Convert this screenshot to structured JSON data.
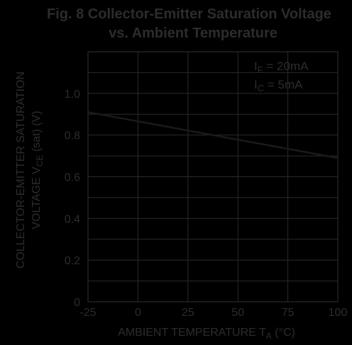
{
  "colors": {
    "background": "#000000",
    "grid": "#2a2a2a",
    "text": "#2c2c2c",
    "line": "#1a1a1a"
  },
  "chart_data": {
    "type": "line",
    "title_line1": "Fig. 8 Collector-Emitter Saturation Voltage",
    "title_line2": "vs. Ambient Temperature",
    "ylabel_line1": "COLLECTOR-EMITTER SATURATION",
    "ylabel_line2_prefix": "VOLTAGE V",
    "ylabel_line2_sub": "CE",
    "ylabel_line2_suffix": " (sat) (V)",
    "xlabel_prefix": "AMBIENT TEMPERATURE T",
    "xlabel_sub": "A",
    "xlabel_suffix": " (°C)",
    "xlim": [
      -25,
      100
    ],
    "ylim": [
      0,
      1.2
    ],
    "x_ticks": [
      -25,
      0,
      25,
      50,
      75,
      100
    ],
    "x_tick_labels": [
      "-25",
      "0",
      "25",
      "50",
      "75",
      "100"
    ],
    "y_ticks": [
      0,
      0.2,
      0.4,
      0.6,
      0.8,
      1.0
    ],
    "y_tick_labels": [
      "0",
      "0.2",
      "0.4",
      "0.6",
      "0.8",
      "1.0"
    ],
    "grid": true,
    "conditions": [
      {
        "prefix": "I",
        "sub": "F",
        "suffix": " = 20mA"
      },
      {
        "prefix": "I",
        "sub": "C",
        "suffix": " = 5mA"
      }
    ],
    "series": [
      {
        "x": [
          -25,
          100
        ],
        "y": [
          0.91,
          0.69
        ]
      }
    ]
  }
}
